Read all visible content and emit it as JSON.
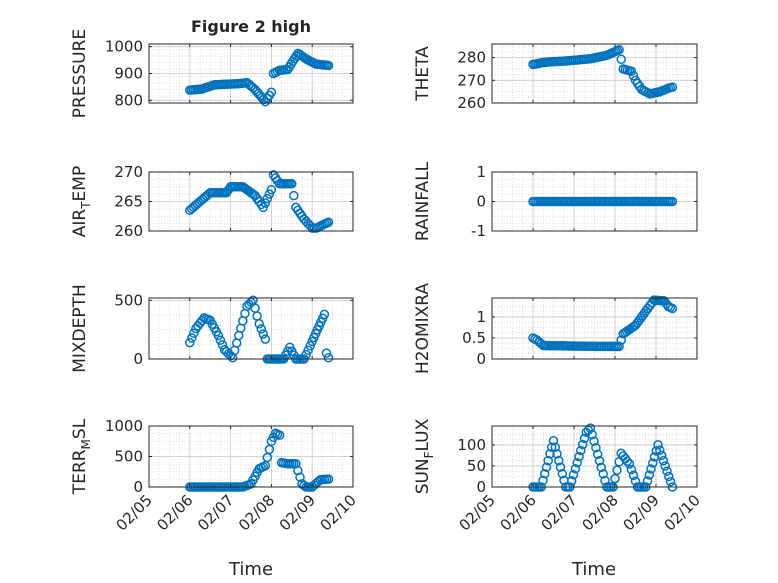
{
  "figure": {
    "title": "Figure 2 high",
    "marker_color": "#0072BD",
    "xlabel": "Time",
    "xtick_labels": [
      "02/05",
      "02/06",
      "02/07",
      "02/08",
      "02/09",
      "02/10"
    ]
  },
  "chart_data": [
    {
      "type": "scatter",
      "name": "pressure",
      "ylabel": "PRESSURE",
      "ylim": [
        790,
        1010
      ],
      "yticks": [
        800,
        900,
        1000
      ],
      "ytick_labels": [
        "800",
        "900",
        "1000"
      ],
      "xlim": [
        0,
        5
      ],
      "keypoints": [
        [
          1,
          838
        ],
        [
          1.3,
          842
        ],
        [
          1.6,
          858
        ],
        [
          2.2,
          862
        ],
        [
          2.4,
          866
        ],
        [
          2.6,
          840
        ],
        [
          2.85,
          795
        ],
        [
          3.0,
          830
        ],
        [
          3.05,
          900
        ],
        [
          3.2,
          912
        ],
        [
          3.4,
          915
        ],
        [
          3.65,
          975
        ],
        [
          3.9,
          950
        ],
        [
          4.1,
          935
        ],
        [
          4.4,
          930
        ]
      ],
      "step": 0.045
    },
    {
      "type": "scatter",
      "name": "theta",
      "ylabel": "THETA",
      "ylim": [
        260,
        286
      ],
      "yticks": [
        260,
        270,
        280
      ],
      "ytick_labels": [
        "260",
        "270",
        "280"
      ],
      "xlim": [
        0,
        5
      ],
      "keypoints": [
        [
          1,
          277
        ],
        [
          1.3,
          278
        ],
        [
          1.8,
          278.5
        ],
        [
          2.4,
          279.5
        ],
        [
          2.8,
          281
        ],
        [
          3.1,
          283.5
        ],
        [
          3.2,
          275
        ],
        [
          3.4,
          274
        ],
        [
          3.5,
          270
        ],
        [
          3.65,
          266
        ],
        [
          3.85,
          264
        ],
        [
          4.1,
          265
        ],
        [
          4.3,
          266.5
        ],
        [
          4.4,
          267
        ]
      ],
      "step": 0.045
    },
    {
      "type": "scatter",
      "name": "air_temp",
      "ylabel": "AIR_TEMP",
      "ylim": [
        260,
        270
      ],
      "yticks": [
        260,
        265,
        270
      ],
      "ytick_labels": [
        "260",
        "265",
        "270"
      ],
      "xlim": [
        0,
        5
      ],
      "keypoints": [
        [
          1,
          263.5
        ],
        [
          1.5,
          266.5
        ],
        [
          1.9,
          266.5
        ],
        [
          2.0,
          267.5
        ],
        [
          2.3,
          267.5
        ],
        [
          2.6,
          266
        ],
        [
          2.8,
          264
        ],
        [
          3.0,
          267
        ],
        [
          3.05,
          269.5
        ],
        [
          3.2,
          268
        ],
        [
          3.5,
          268
        ],
        [
          3.6,
          264
        ],
        [
          3.8,
          262
        ],
        [
          4.0,
          260.5
        ],
        [
          4.1,
          260.5
        ],
        [
          4.4,
          261.5
        ]
      ],
      "step": 0.045
    },
    {
      "type": "scatter",
      "name": "rainfall",
      "ylabel": "RAINFALL",
      "ylim": [
        -1,
        1
      ],
      "yticks": [
        -1,
        0,
        1
      ],
      "ytick_labels": [
        "-1",
        "0",
        "1"
      ],
      "xlim": [
        0,
        5
      ],
      "keypoints": [
        [
          1,
          0
        ],
        [
          4.4,
          0
        ]
      ],
      "step": 0.045
    },
    {
      "type": "scatter",
      "name": "mixdepth",
      "ylabel": "MIXDEPTH",
      "ylim": [
        0,
        520
      ],
      "yticks": [
        0,
        500
      ],
      "ytick_labels": [
        "0",
        "500"
      ],
      "xlim": [
        0,
        5
      ],
      "keypoints": [
        [
          1,
          140
        ],
        [
          1.15,
          260
        ],
        [
          1.35,
          350
        ],
        [
          1.5,
          330
        ],
        [
          1.7,
          200
        ],
        [
          1.85,
          80
        ],
        [
          2.05,
          10
        ],
        [
          2.2,
          200
        ],
        [
          2.4,
          450
        ],
        [
          2.55,
          500
        ],
        [
          2.7,
          300
        ],
        [
          2.85,
          170
        ],
        [
          2.9,
          0
        ],
        [
          3.3,
          0
        ],
        [
          3.45,
          100
        ],
        [
          3.6,
          0
        ],
        [
          3.8,
          0
        ],
        [
          4.0,
          150
        ],
        [
          4.3,
          380
        ],
        [
          4.35,
          50
        ],
        [
          4.4,
          10
        ]
      ],
      "step": 0.045
    },
    {
      "type": "scatter",
      "name": "h2omixra",
      "ylabel": "H2OMIXRA",
      "ylim": [
        0,
        1.45
      ],
      "yticks": [
        0,
        0.5,
        1
      ],
      "ytick_labels": [
        "0",
        "0.5",
        "1"
      ],
      "xlim": [
        0,
        5
      ],
      "keypoints": [
        [
          1,
          0.5
        ],
        [
          1.1,
          0.45
        ],
        [
          1.25,
          0.32
        ],
        [
          2.5,
          0.3
        ],
        [
          3.1,
          0.3
        ],
        [
          3.2,
          0.6
        ],
        [
          3.5,
          0.8
        ],
        [
          3.8,
          1.2
        ],
        [
          3.95,
          1.4
        ],
        [
          4.2,
          1.38
        ],
        [
          4.3,
          1.25
        ],
        [
          4.4,
          1.2
        ]
      ],
      "step": 0.045
    },
    {
      "type": "scatter",
      "name": "terr_msl",
      "ylabel": "TERR_MSL",
      "ylim": [
        0,
        1000
      ],
      "yticks": [
        0,
        500,
        1000
      ],
      "ytick_labels": [
        "0",
        "500",
        "1000"
      ],
      "xlim": [
        0,
        5
      ],
      "keypoints": [
        [
          1,
          0
        ],
        [
          2.3,
          0
        ],
        [
          2.5,
          50
        ],
        [
          2.7,
          300
        ],
        [
          2.85,
          350
        ],
        [
          3.0,
          750
        ],
        [
          3.1,
          880
        ],
        [
          3.2,
          850
        ],
        [
          3.25,
          400
        ],
        [
          3.4,
          380
        ],
        [
          3.6,
          380
        ],
        [
          3.75,
          50
        ],
        [
          3.85,
          0
        ],
        [
          4.0,
          0
        ],
        [
          4.2,
          120
        ],
        [
          4.4,
          130
        ]
      ],
      "step": 0.045
    },
    {
      "type": "scatter",
      "name": "sunflux",
      "ylabel": "SUN_FLUX",
      "ylim": [
        0,
        145
      ],
      "yticks": [
        0,
        50,
        100
      ],
      "ytick_labels": [
        "0",
        "50",
        "100"
      ],
      "xlim": [
        0,
        5
      ],
      "keypoints": [
        [
          1,
          0
        ],
        [
          1.2,
          0
        ],
        [
          1.5,
          110
        ],
        [
          1.8,
          0
        ],
        [
          1.9,
          0
        ],
        [
          2.3,
          130
        ],
        [
          2.4,
          140
        ],
        [
          2.8,
          0
        ],
        [
          2.95,
          0
        ],
        [
          3.15,
          80
        ],
        [
          3.35,
          55
        ],
        [
          3.55,
          0
        ],
        [
          3.75,
          0
        ],
        [
          4.05,
          100
        ],
        [
          4.4,
          0
        ]
      ],
      "step": 0.045
    }
  ]
}
